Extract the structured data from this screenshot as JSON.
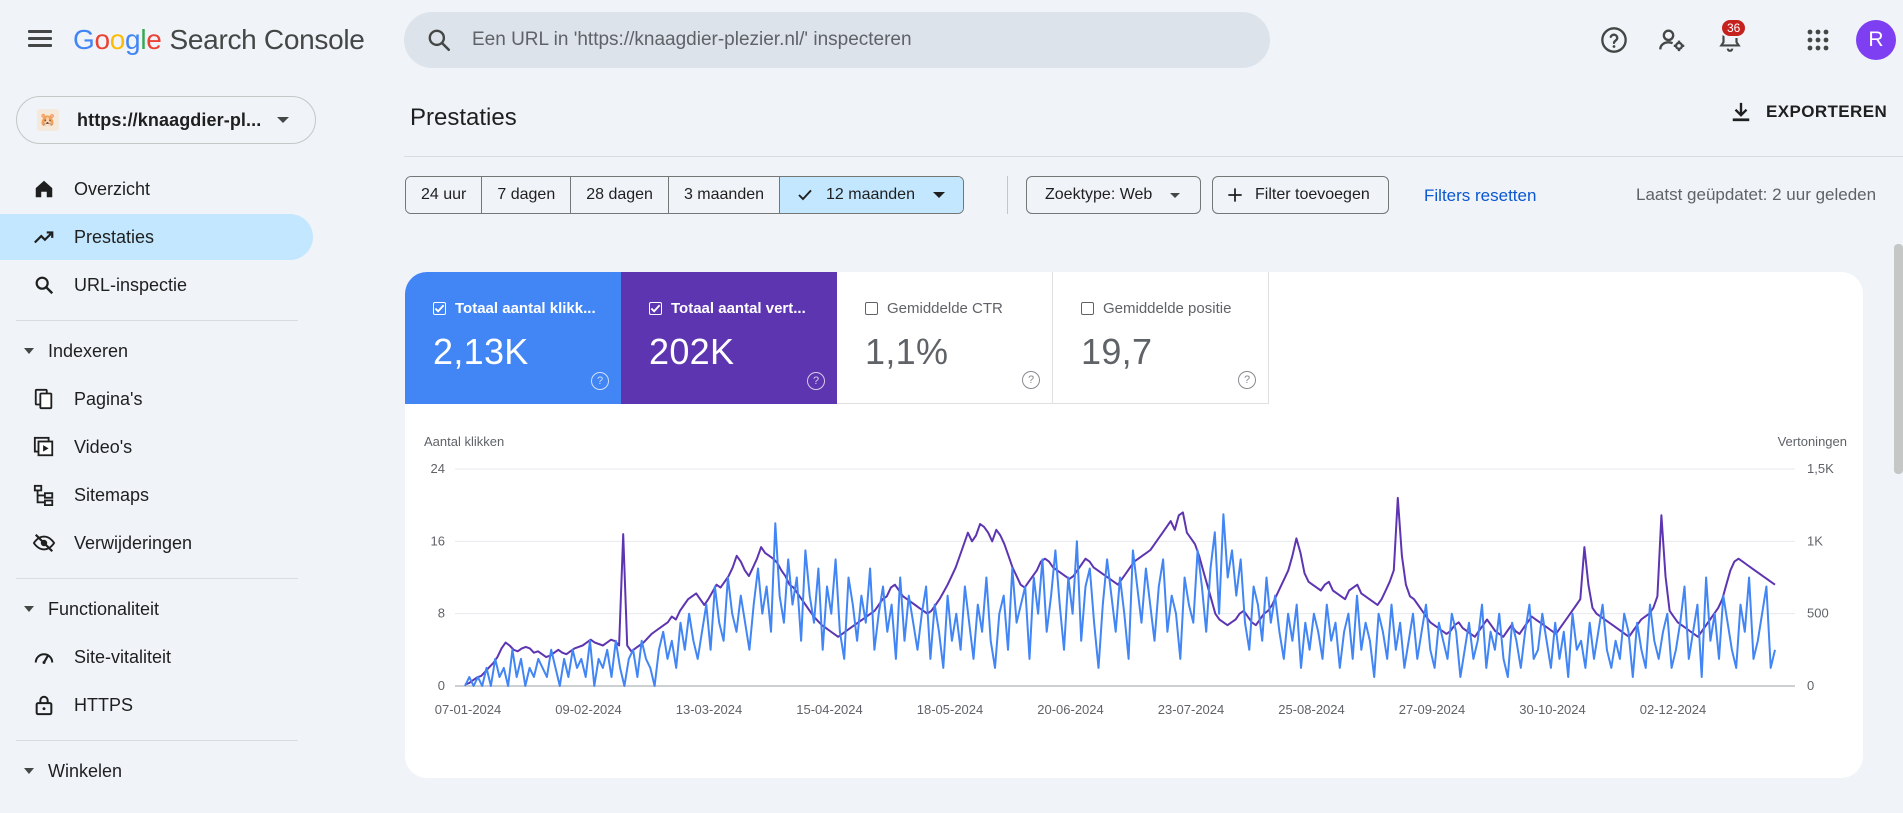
{
  "app": {
    "logo_parts": [
      "G",
      "o",
      "o",
      "g",
      "l",
      "e"
    ],
    "product": "Search Console"
  },
  "search": {
    "placeholder": "Een URL in 'https://knaagdier-plezier.nl/' inspecteren"
  },
  "header": {
    "notification_count": "36",
    "avatar_letter": "R"
  },
  "property": {
    "name": "https://knaagdier-pl..."
  },
  "sidebar": {
    "items": [
      {
        "label": "Overzicht",
        "icon": "home-icon"
      },
      {
        "label": "Prestaties",
        "icon": "trending-icon",
        "active": true
      },
      {
        "label": "URL-inspectie",
        "icon": "search-icon"
      }
    ],
    "sections": [
      {
        "label": "Indexeren",
        "items": [
          {
            "label": "Pagina's",
            "icon": "pages-icon"
          },
          {
            "label": "Video's",
            "icon": "video-icon"
          },
          {
            "label": "Sitemaps",
            "icon": "sitemap-icon"
          },
          {
            "label": "Verwijderingen",
            "icon": "eye-off-icon"
          }
        ]
      },
      {
        "label": "Functionaliteit",
        "items": [
          {
            "label": "Site-vitaliteit",
            "icon": "speed-icon"
          },
          {
            "label": "HTTPS",
            "icon": "lock-icon"
          }
        ]
      },
      {
        "label": "Winkelen",
        "items": []
      }
    ]
  },
  "page": {
    "title": "Prestaties",
    "export_label": "EXPORTEREN"
  },
  "filters": {
    "ranges": [
      "24 uur",
      "7 dagen",
      "28 dagen",
      "3 maanden",
      "12 maanden"
    ],
    "selected_range": "12 maanden",
    "search_type": "Zoektype: Web",
    "add_filter": "Filter toevoegen",
    "reset": "Filters resetten",
    "last_updated": "Laatst geüpdatet: 2 uur geleden"
  },
  "metrics": [
    {
      "label": "Totaal aantal klikk...",
      "value": "2,13K",
      "checked": true,
      "color": "#4285f4"
    },
    {
      "label": "Totaal aantal vert...",
      "value": "202K",
      "checked": true,
      "color": "#5e35b1"
    },
    {
      "label": "Gemiddelde CTR",
      "value": "1,1%",
      "checked": false
    },
    {
      "label": "Gemiddelde positie",
      "value": "19,7",
      "checked": false
    }
  ],
  "chart_data": {
    "type": "line",
    "ylabel_left": "Aantal klikken",
    "ylabel_right": "Vertoningen",
    "yticks_left": [
      "0",
      "8",
      "16",
      "24"
    ],
    "yticks_right": [
      "0",
      "500",
      "1K",
      "1,5K"
    ],
    "ylim_left": [
      0,
      24
    ],
    "ylim_right": [
      0,
      1500
    ],
    "xticks": [
      "07-01-2024",
      "09-02-2024",
      "13-03-2024",
      "15-04-2024",
      "18-05-2024",
      "20-06-2024",
      "23-07-2024",
      "25-08-2024",
      "27-09-2024",
      "30-10-2024",
      "02-12-2024"
    ],
    "grid": true,
    "series": [
      {
        "name": "Vertoningen",
        "axis": "right",
        "color": "#5e35b1",
        "values": [
          10,
          20,
          40,
          60,
          70,
          100,
          130,
          160,
          200,
          260,
          300,
          280,
          250,
          240,
          260,
          270,
          260,
          230,
          240,
          220,
          200,
          210,
          230,
          250,
          230,
          220,
          240,
          260,
          270,
          280,
          300,
          320,
          300,
          290,
          280,
          300,
          320,
          310,
          280,
          1050,
          280,
          240,
          260,
          280,
          300,
          330,
          360,
          380,
          400,
          420,
          440,
          480,
          460,
          520,
          560,
          600,
          620,
          640,
          600,
          560,
          600,
          650,
          700,
          680,
          720,
          760,
          820,
          900,
          860,
          800,
          760,
          820,
          880,
          960,
          920,
          900,
          880,
          850,
          800,
          760,
          700,
          680,
          640,
          600,
          560,
          520,
          480,
          450,
          420,
          400,
          380,
          360,
          340,
          360,
          380,
          400,
          420,
          440,
          460,
          480,
          500,
          520,
          560,
          600,
          620,
          680,
          700,
          660,
          620,
          600,
          580,
          560,
          540,
          520,
          500,
          520,
          560,
          600,
          650,
          700,
          760,
          820,
          900,
          980,
          1060,
          1000,
          1040,
          1120,
          1100,
          1060,
          1000,
          1080,
          1040,
          980,
          900,
          820,
          760,
          700,
          680,
          720,
          760,
          800,
          860,
          880,
          860,
          820,
          800,
          780,
          760,
          740,
          760,
          800,
          840,
          880,
          860,
          820,
          800,
          780,
          760,
          740,
          720,
          700,
          740,
          780,
          820,
          860,
          880,
          900,
          920,
          940,
          980,
          1020,
          1060,
          1100,
          1140,
          1080,
          1180,
          1200,
          1060,
          1020,
          980,
          900,
          800,
          700,
          600,
          500,
          460,
          440,
          420,
          440,
          460,
          500,
          520,
          480,
          440,
          420,
          460,
          500,
          520,
          560,
          620,
          680,
          740,
          800,
          900,
          1020,
          920,
          780,
          720,
          700,
          680,
          660,
          700,
          720,
          660,
          640,
          620,
          600,
          660,
          680,
          700,
          640,
          620,
          600,
          580,
          560,
          600,
          660,
          720,
          800,
          1300,
          900,
          700,
          620,
          600,
          560,
          520,
          480,
          440,
          420,
          400,
          380,
          360,
          380,
          420,
          440,
          400,
          380,
          360,
          340,
          380,
          420,
          460,
          420,
          380,
          360,
          340,
          380,
          420,
          380,
          360,
          400,
          440,
          480,
          460,
          440,
          420,
          400,
          380,
          360,
          400,
          440,
          480,
          520,
          560,
          600,
          960,
          700,
          540,
          500,
          480,
          460,
          440,
          420,
          400,
          380,
          360,
          340,
          380,
          420,
          460,
          480,
          500,
          540,
          620,
          1180,
          760,
          520,
          480,
          440,
          420,
          400,
          380,
          360,
          340,
          380,
          420,
          460,
          500,
          540,
          600,
          700,
          800,
          860,
          880,
          860,
          840,
          820,
          800,
          780,
          760,
          740,
          720,
          700
        ]
      },
      {
        "name": "Aantal klikken",
        "axis": "left",
        "color": "#4285f4",
        "values": [
          0,
          1,
          0,
          1,
          0,
          2,
          0,
          3,
          1,
          2,
          0,
          4,
          1,
          3,
          0,
          2,
          1,
          3,
          2,
          1,
          4,
          2,
          0,
          3,
          1,
          4,
          2,
          3,
          1,
          5,
          0,
          3,
          2,
          4,
          1,
          5,
          2,
          0,
          3,
          4,
          1,
          5,
          3,
          2,
          0,
          4,
          6,
          3,
          5,
          2,
          7,
          4,
          8,
          5,
          3,
          6,
          9,
          4,
          11,
          7,
          5,
          12,
          8,
          6,
          10,
          7,
          4,
          9,
          13,
          8,
          11,
          6,
          18,
          10,
          7,
          14,
          9,
          12,
          5,
          15,
          10,
          7,
          13,
          4,
          11,
          8,
          14,
          6,
          3,
          12,
          9,
          5,
          10,
          7,
          13,
          4,
          8,
          11,
          6,
          9,
          3,
          12,
          5,
          10,
          7,
          4,
          8,
          11,
          3,
          9,
          6,
          2,
          10,
          5,
          8,
          4,
          11,
          7,
          3,
          9,
          6,
          12,
          5,
          2,
          8,
          10,
          4,
          13,
          7,
          9,
          11,
          3,
          12,
          8,
          14,
          6,
          10,
          15,
          9,
          4,
          12,
          8,
          16,
          5,
          11,
          13,
          7,
          2,
          9,
          14,
          10,
          6,
          12,
          8,
          3,
          15,
          11,
          7,
          13,
          9,
          5,
          11,
          14,
          6,
          10,
          8,
          3,
          12,
          9,
          7,
          15,
          11,
          6,
          13,
          17,
          8,
          19,
          12,
          15,
          10,
          14,
          7,
          4,
          11,
          9,
          5,
          12,
          7,
          10,
          6,
          3,
          8,
          5,
          9,
          2,
          7,
          4,
          8,
          6,
          3,
          9,
          5,
          7,
          2,
          6,
          8,
          3,
          10,
          4,
          7,
          5,
          1,
          8,
          6,
          3,
          9,
          4,
          7,
          2,
          5,
          8,
          3,
          6,
          9,
          4,
          2,
          7,
          5,
          3,
          8,
          6,
          1,
          4,
          7,
          3,
          5,
          9,
          2,
          6,
          4,
          8,
          3,
          1,
          7,
          5,
          2,
          6,
          9,
          3,
          4,
          8,
          5,
          2,
          7,
          3,
          6,
          1,
          8,
          4,
          5,
          2,
          7,
          3,
          6,
          9,
          4,
          2,
          5,
          3,
          8,
          6,
          1,
          7,
          4,
          2,
          9,
          5,
          3,
          6,
          8,
          2,
          4,
          7,
          11,
          3,
          6,
          9,
          1,
          12,
          5,
          8,
          3,
          10,
          7,
          4,
          2,
          9,
          6,
          12,
          3,
          5,
          8,
          11,
          2,
          4
        ]
      }
    ]
  }
}
